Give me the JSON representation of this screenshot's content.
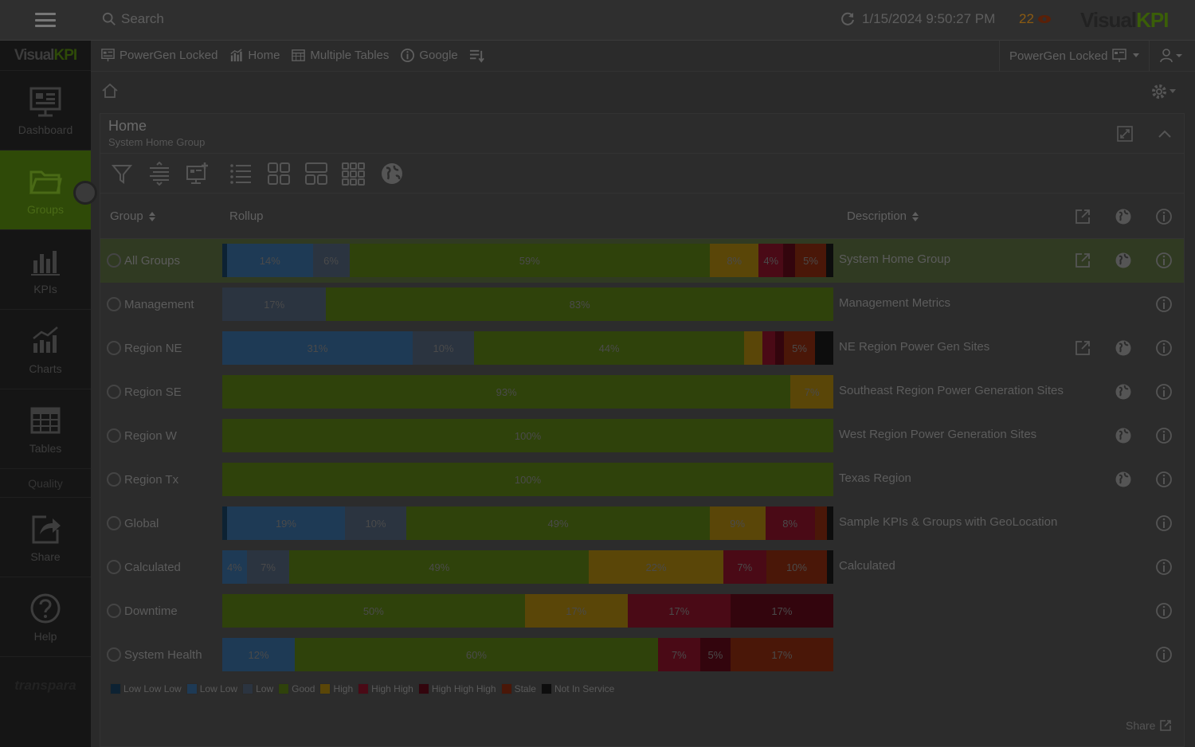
{
  "topbar": {
    "search_placeholder": "Search",
    "datetime": "1/15/2024 9:50:27 PM",
    "alert_count": "22",
    "brand_a": "Visual",
    "brand_b": "KPI"
  },
  "leftnav": {
    "logo_a": "Visual",
    "logo_b": "KPI",
    "items": [
      {
        "label": "Dashboard",
        "icon": "dashboard-icon"
      },
      {
        "label": "Groups",
        "icon": "folder-icon"
      },
      {
        "label": "KPIs",
        "icon": "bar-chart-icon"
      },
      {
        "label": "Charts",
        "icon": "trend-chart-icon"
      },
      {
        "label": "Tables",
        "icon": "table-icon"
      }
    ],
    "quality_label": "Quality",
    "items2": [
      {
        "label": "Share",
        "icon": "share-icon"
      },
      {
        "label": "Help",
        "icon": "help-icon"
      }
    ],
    "footer": "transpara"
  },
  "secbar": {
    "crumbs": [
      {
        "label": "PowerGen Locked",
        "icon": "dashboard-icon"
      },
      {
        "label": "Home",
        "icon": "bar-chart-icon"
      },
      {
        "label": "Multiple Tables",
        "icon": "table-icon"
      },
      {
        "label": "Google",
        "icon": "info-icon"
      }
    ],
    "dashboard_select": "PowerGen Locked"
  },
  "panel": {
    "title": "Home",
    "subtitle": "System Home Group",
    "col_group": "Group",
    "col_rollup": "Rollup",
    "col_description": "Description",
    "share_label": "Share"
  },
  "colors": {
    "LowLowLow": "#0d2233",
    "LowLow": "#1e3a55",
    "Low": "#2b3440",
    "Good": "#2f420b",
    "High": "#5a4608",
    "HighHigh": "#4a0a16",
    "HighHighHigh": "#33050d",
    "Stale": "#4a1708",
    "NotInService": "#0d0d0d"
  },
  "rows": [
    {
      "group": "All Groups",
      "desc": "System Home Group",
      "selected": true,
      "export": true,
      "globe": true,
      "segs": [
        [
          "LowLowLow",
          0.8,
          ""
        ],
        [
          "LowLow",
          14,
          "14%"
        ],
        [
          "Low",
          6,
          "6%"
        ],
        [
          "Good",
          59,
          "59%"
        ],
        [
          "High",
          8,
          "8%"
        ],
        [
          "HighHigh",
          4,
          "4%"
        ],
        [
          "HighHighHigh",
          2,
          ""
        ],
        [
          "Stale",
          5,
          "5%"
        ],
        [
          "NotInService",
          1.2,
          ""
        ]
      ]
    },
    {
      "group": "Management",
      "desc": "Management Metrics",
      "selected": false,
      "export": false,
      "globe": false,
      "segs": [
        [
          "Low",
          17,
          "17%"
        ],
        [
          "Good",
          83,
          "83%"
        ]
      ]
    },
    {
      "group": "Region NE",
      "desc": "NE Region Power Gen Sites",
      "selected": false,
      "export": true,
      "globe": true,
      "segs": [
        [
          "LowLow",
          31,
          "31%"
        ],
        [
          "Low",
          10,
          "10%"
        ],
        [
          "Good",
          44,
          "44%"
        ],
        [
          "High",
          3,
          ""
        ],
        [
          "HighHigh",
          2,
          ""
        ],
        [
          "HighHighHigh",
          1.5,
          ""
        ],
        [
          "Stale",
          5,
          "5%"
        ],
        [
          "NotInService",
          3,
          ""
        ]
      ]
    },
    {
      "group": "Region SE",
      "desc": "Southeast Region Power Generation Sites",
      "selected": false,
      "export": false,
      "globe": true,
      "segs": [
        [
          "Good",
          93,
          "93%"
        ],
        [
          "High",
          7,
          "7%"
        ]
      ]
    },
    {
      "group": "Region W",
      "desc": "West Region Power Generation Sites",
      "selected": false,
      "export": false,
      "globe": true,
      "segs": [
        [
          "Good",
          100,
          "100%"
        ]
      ]
    },
    {
      "group": "Region Tx",
      "desc": "Texas Region",
      "selected": false,
      "export": false,
      "globe": true,
      "segs": [
        [
          "Good",
          100,
          "100%"
        ]
      ]
    },
    {
      "group": "Global",
      "desc": "Sample KPIs & Groups with GeoLocation",
      "selected": false,
      "export": false,
      "globe": false,
      "segs": [
        [
          "LowLowLow",
          0.8,
          ""
        ],
        [
          "LowLow",
          19,
          "19%"
        ],
        [
          "Low",
          10,
          "10%"
        ],
        [
          "Good",
          49,
          "49%"
        ],
        [
          "High",
          9,
          "9%"
        ],
        [
          "HighHigh",
          8,
          "8%"
        ],
        [
          "Stale",
          2,
          ""
        ],
        [
          "NotInService",
          1,
          ""
        ]
      ]
    },
    {
      "group": "Calculated",
      "desc": "Calculated",
      "selected": false,
      "export": false,
      "globe": false,
      "segs": [
        [
          "LowLow",
          4,
          "4%"
        ],
        [
          "Low",
          7,
          "7%"
        ],
        [
          "Good",
          49,
          "49%"
        ],
        [
          "High",
          22,
          "22%"
        ],
        [
          "HighHigh",
          7,
          "7%"
        ],
        [
          "Stale",
          10,
          "10%"
        ],
        [
          "NotInService",
          1,
          ""
        ]
      ]
    },
    {
      "group": "Downtime",
      "desc": "",
      "selected": false,
      "export": false,
      "globe": false,
      "segs": [
        [
          "Good",
          50,
          "50%"
        ],
        [
          "High",
          17,
          "17%"
        ],
        [
          "HighHigh",
          17,
          "17%"
        ],
        [
          "HighHighHigh",
          17,
          "17%"
        ]
      ]
    },
    {
      "group": "System Health",
      "desc": "",
      "selected": false,
      "export": false,
      "globe": false,
      "segs": [
        [
          "LowLow",
          12,
          "12%"
        ],
        [
          "Good",
          60,
          "60%"
        ],
        [
          "HighHigh",
          7,
          "7%"
        ],
        [
          "HighHighHigh",
          5,
          "5%"
        ],
        [
          "Stale",
          17,
          "17%"
        ]
      ]
    }
  ],
  "legend": [
    {
      "key": "LowLowLow",
      "label": "Low Low Low"
    },
    {
      "key": "LowLow",
      "label": "Low Low"
    },
    {
      "key": "Low",
      "label": "Low"
    },
    {
      "key": "Good",
      "label": "Good"
    },
    {
      "key": "High",
      "label": "High"
    },
    {
      "key": "HighHigh",
      "label": "High High"
    },
    {
      "key": "HighHighHigh",
      "label": "High High High"
    },
    {
      "key": "Stale",
      "label": "Stale"
    },
    {
      "key": "NotInService",
      "label": "Not In Service"
    }
  ]
}
